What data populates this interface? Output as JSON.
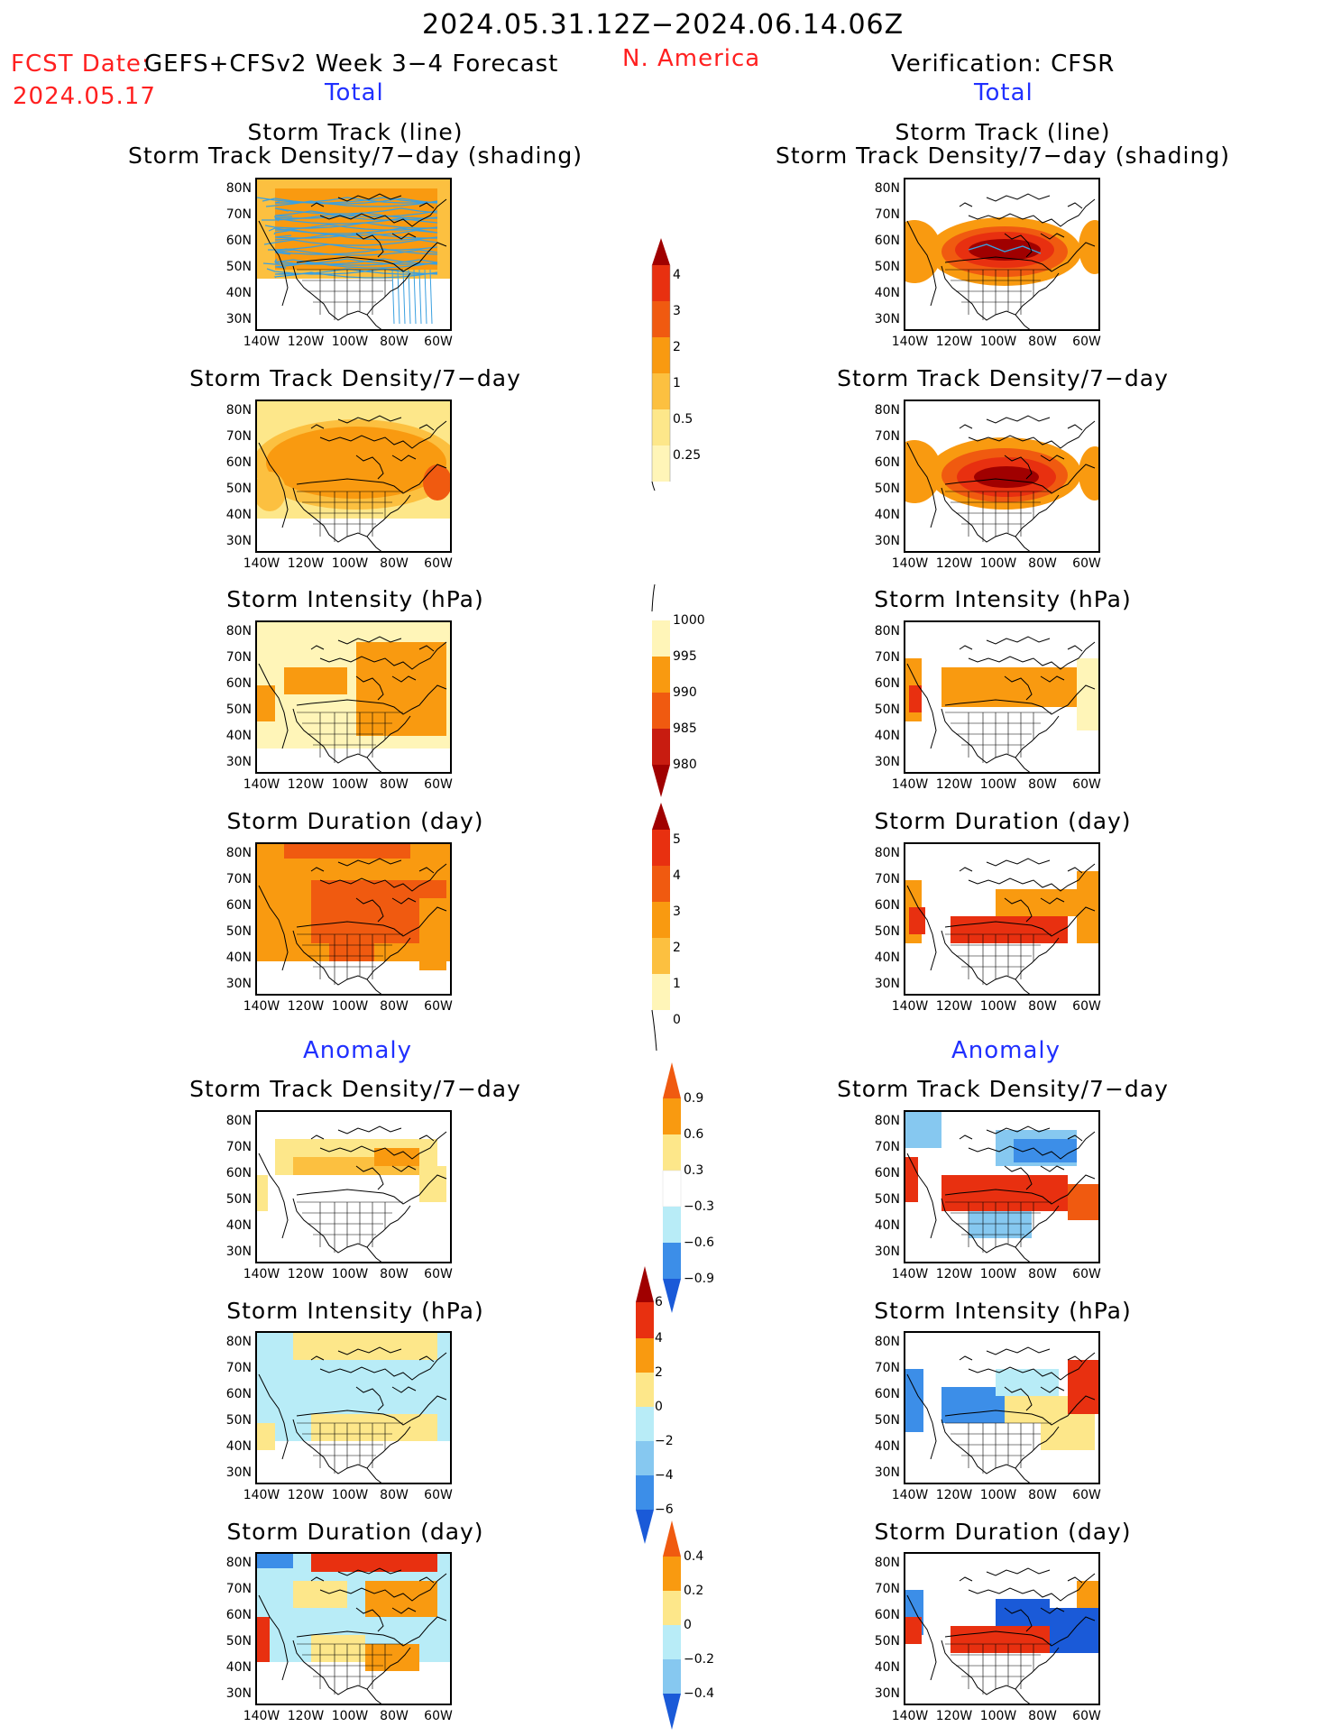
{
  "header": {
    "date_range": "2024.05.31.12Z−2024.06.14.06Z",
    "fcst_label": "FCST Date:",
    "fcst_date": "2024.05.17",
    "model": "GEFS+CFSv2 Week 3−4 Forecast",
    "region": "N. America",
    "verification": "Verification: CFSR"
  },
  "sections": {
    "total": "Total",
    "anomaly": "Anomaly"
  },
  "titles": {
    "storm_track_line": "Storm Track (line)",
    "storm_track_shading": "Storm Track Density/7−day (shading)",
    "storm_track_density": "Storm Track Density/7−day",
    "storm_intensity": "Storm Intensity (hPa)",
    "storm_duration": "Storm Duration (day)"
  },
  "axes": {
    "lat_labels": [
      "80N",
      "70N",
      "60N",
      "50N",
      "40N",
      "30N"
    ],
    "lon_labels": [
      "140W",
      "120W",
      "100W",
      "80W",
      "60W"
    ]
  },
  "colorbars": {
    "density_total": [
      "4",
      "3",
      "2",
      "1",
      "0.5",
      "0.25"
    ],
    "intensity_total": [
      "1000",
      "995",
      "990",
      "985",
      "980"
    ],
    "duration_total": [
      "5",
      "4",
      "3",
      "2",
      "1",
      "0"
    ],
    "density_anom": [
      "0.9",
      "0.6",
      "0.3",
      "−0.3",
      "−0.6",
      "−0.9"
    ],
    "intensity_anom": [
      "6",
      "4",
      "2",
      "0",
      "−2",
      "−4",
      "−6"
    ],
    "duration_anom": [
      "0.4",
      "0.2",
      "0",
      "−0.2",
      "−0.4"
    ]
  },
  "colors": {
    "dark_red": "#a00000",
    "red": "#e83010",
    "orange_red": "#f05a10",
    "orange": "#f99a10",
    "light_orange": "#fcc040",
    "yellow": "#fde78a",
    "pale_yellow": "#fff5b8",
    "pale_blue": "#b8ecf7",
    "light_blue": "#86c8f0",
    "blue": "#3c8ee8",
    "dark_blue": "#1a5ad8",
    "track_blue": "#3aa0e0"
  }
}
